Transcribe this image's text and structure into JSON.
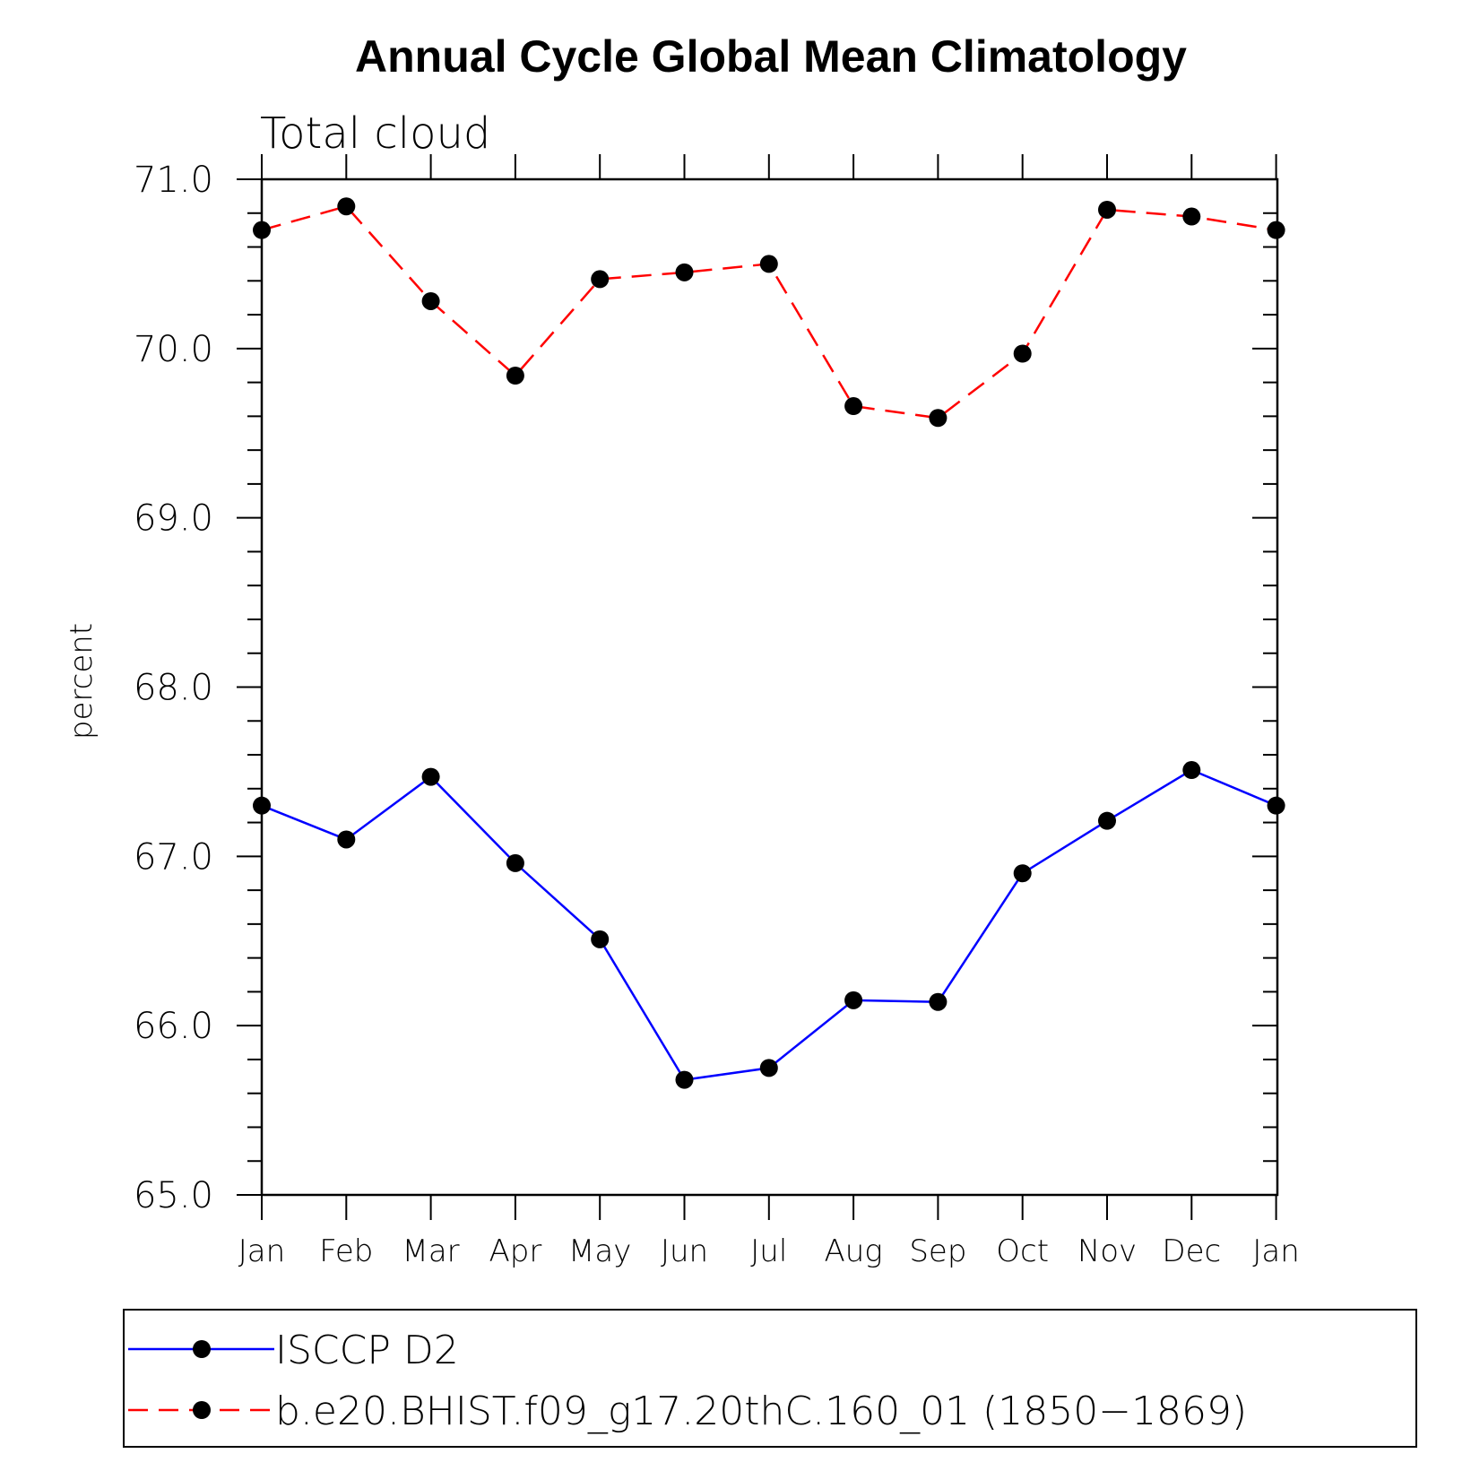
{
  "chart_data": {
    "type": "line",
    "title": "Annual Cycle Global Mean Climatology",
    "subtitle": "Total cloud",
    "ylabel": "percent",
    "ylim": [
      65.0,
      71.0
    ],
    "yticks": [
      "65.0",
      "66.0",
      "67.0",
      "68.0",
      "69.0",
      "70.0",
      "71.0"
    ],
    "categories": [
      "Jan",
      "Feb",
      "Mar",
      "Apr",
      "May",
      "Jun",
      "Jul",
      "Aug",
      "Sep",
      "Oct",
      "Nov",
      "Dec",
      "Jan"
    ],
    "grid": false,
    "legend_position": "bottom",
    "series": [
      {
        "name": "ISCCP D2",
        "color": "#0000ff",
        "dash": "solid",
        "values": [
          67.3,
          67.1,
          67.47,
          66.96,
          66.51,
          65.68,
          65.75,
          66.15,
          66.14,
          66.9,
          67.21,
          67.51,
          67.3
        ]
      },
      {
        "name": "b.e20.BHIST.f09_g17.20thC.160_01 (1850−1869)",
        "color": "#ff0000",
        "dash": "dashed",
        "values": [
          70.7,
          70.84,
          70.28,
          69.84,
          70.41,
          70.45,
          70.5,
          69.66,
          69.59,
          69.97,
          70.82,
          70.78,
          70.7
        ]
      }
    ]
  }
}
